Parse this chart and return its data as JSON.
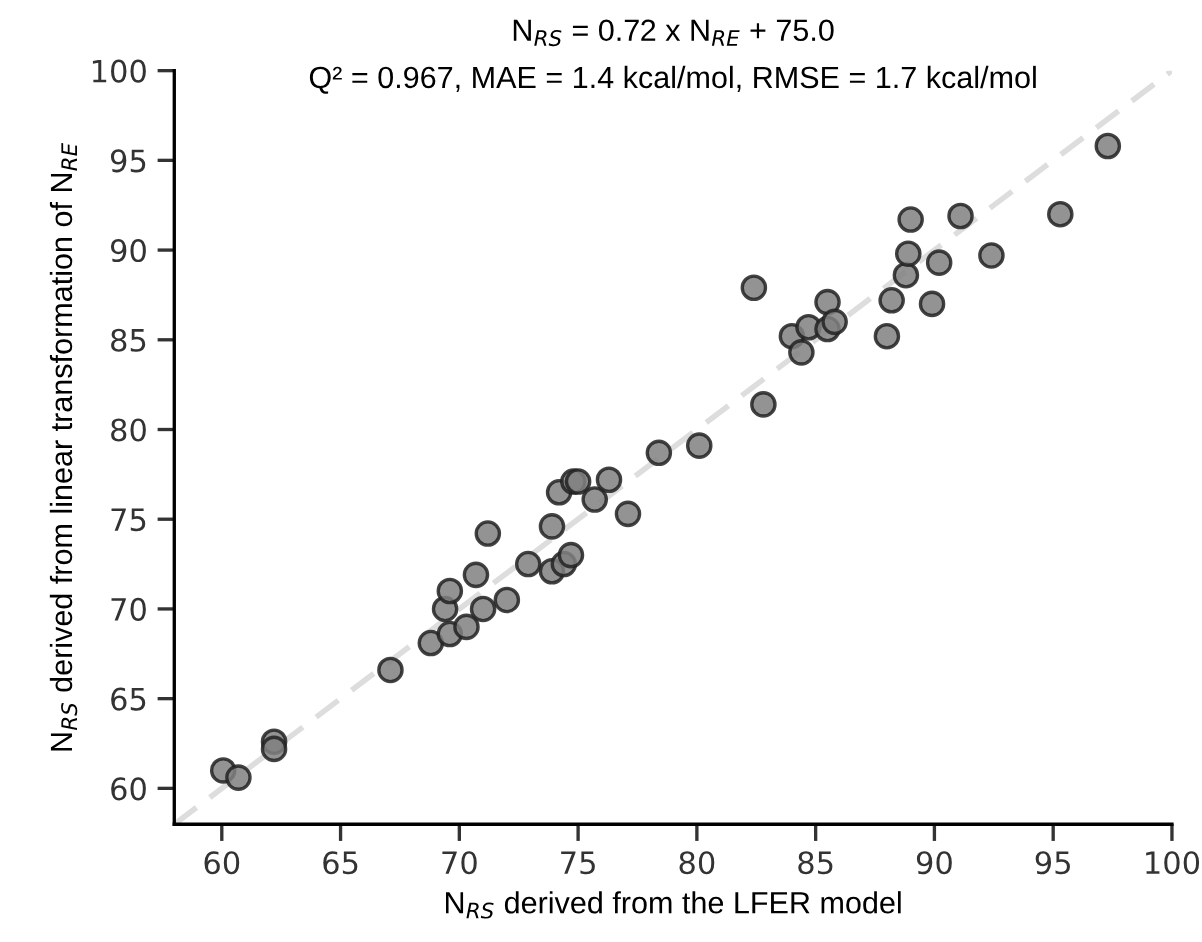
{
  "chart_data": {
    "type": "scatter",
    "title": "N$_{RS}$ = 0.72 x N$_{RE}$ + 75.0",
    "subtitle": "Q² = 0.967, MAE = 1.4 kcal/mol, RMSE = 1.7 kcal/mol",
    "xlabel": "N$_{RS}$ derived from the LFER model",
    "ylabel": "N$_{RS}$ derived from linear transformation of N$_{RE}$",
    "xlim": [
      58,
      100
    ],
    "ylim": [
      58,
      100
    ],
    "xticks": [
      60,
      65,
      70,
      75,
      80,
      85,
      90,
      95,
      100
    ],
    "yticks": [
      60,
      65,
      70,
      75,
      80,
      85,
      90,
      95,
      100
    ],
    "grid": false,
    "legend": false,
    "series": [
      {
        "type": "line",
        "color": "#dddddd",
        "line_style": "dashed",
        "marker": "none",
        "x": [
          58,
          100
        ],
        "values": [
          58,
          100
        ]
      },
      {
        "color": "#808080",
        "marker": "circle",
        "x": [
          60.06,
          60.7,
          62.2,
          62.2,
          67.1,
          68.8,
          69.6,
          69.4,
          69.6,
          70.3,
          71.0,
          70.7,
          72.0,
          71.2,
          72.9,
          73.9,
          73.9,
          74.4,
          74.7,
          74.2,
          74.8,
          75.0,
          75.7,
          76.3,
          77.1,
          78.4,
          80.1,
          82.4,
          82.8,
          84.0,
          84.4,
          84.7,
          85.5,
          85.5,
          85.8,
          88.0,
          88.2,
          88.8,
          88.9,
          89.0,
          89.9,
          90.2,
          91.1,
          92.4,
          95.3,
          97.3
        ],
        "values": [
          61.0,
          60.6,
          62.6,
          62.2,
          66.6,
          68.1,
          68.6,
          70.0,
          71.0,
          69.0,
          70.0,
          71.9,
          70.5,
          74.2,
          72.5,
          72.1,
          74.6,
          72.5,
          73.0,
          76.5,
          77.1,
          77.1,
          76.1,
          77.2,
          75.3,
          78.7,
          79.1,
          87.9,
          81.4,
          85.2,
          84.3,
          85.7,
          87.1,
          85.6,
          86.0,
          85.2,
          87.2,
          88.6,
          89.8,
          91.7,
          87.0,
          89.3,
          91.9,
          89.7,
          92.0,
          95.8
        ]
      }
    ]
  }
}
